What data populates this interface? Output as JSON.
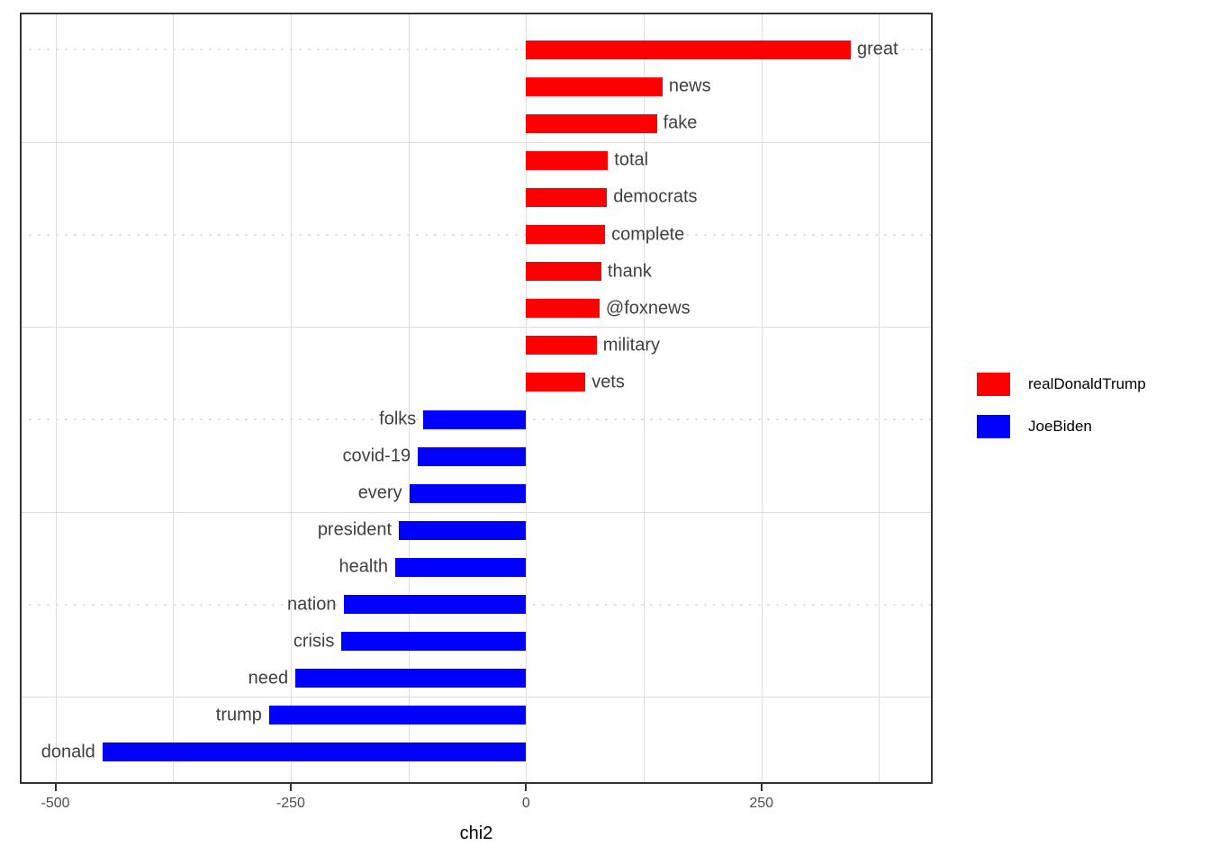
{
  "chart_data": {
    "type": "bar",
    "orientation": "horizontal",
    "title": "",
    "xlabel": "chi2",
    "ylabel": "",
    "x_ticks": [
      {
        "value": -500,
        "label": "-500"
      },
      {
        "value": -250,
        "label": "-250"
      },
      {
        "value": 0,
        "label": "0"
      },
      {
        "value": 250,
        "label": "250"
      }
    ],
    "xlim": [
      -538,
      432
    ],
    "grid": {
      "vertical_line_values": [
        -500,
        -375,
        -250,
        -125,
        0,
        125,
        250,
        375
      ],
      "horizontal_solid_rows": [
        2.5,
        7.5,
        12.5,
        17.5
      ],
      "horizontal_dotted_rows": [
        0,
        5,
        10,
        15
      ]
    },
    "legend_position": "right",
    "series": [
      {
        "name": "realDonaldTrump",
        "color": "#ff0000"
      },
      {
        "name": "JoeBiden",
        "color": "#0000ff"
      }
    ],
    "points": [
      {
        "label": "great",
        "value": 345,
        "series": "realDonaldTrump"
      },
      {
        "label": "news",
        "value": 145,
        "series": "realDonaldTrump"
      },
      {
        "label": "fake",
        "value": 139,
        "series": "realDonaldTrump"
      },
      {
        "label": "total",
        "value": 87,
        "series": "realDonaldTrump"
      },
      {
        "label": "democrats",
        "value": 86,
        "series": "realDonaldTrump"
      },
      {
        "label": "complete",
        "value": 84,
        "series": "realDonaldTrump"
      },
      {
        "label": "thank",
        "value": 80,
        "series": "realDonaldTrump"
      },
      {
        "label": "@foxnews",
        "value": 78,
        "series": "realDonaldTrump"
      },
      {
        "label": "military",
        "value": 75,
        "series": "realDonaldTrump"
      },
      {
        "label": "vets",
        "value": 63,
        "series": "realDonaldTrump"
      },
      {
        "label": "folks",
        "value": -109,
        "series": "JoeBiden"
      },
      {
        "label": "covid-19",
        "value": -115,
        "series": "JoeBiden"
      },
      {
        "label": "every",
        "value": -124,
        "series": "JoeBiden"
      },
      {
        "label": "president",
        "value": -135,
        "series": "JoeBiden"
      },
      {
        "label": "health",
        "value": -139,
        "series": "JoeBiden"
      },
      {
        "label": "nation",
        "value": -194,
        "series": "JoeBiden"
      },
      {
        "label": "crisis",
        "value": -196,
        "series": "JoeBiden"
      },
      {
        "label": "need",
        "value": -245,
        "series": "JoeBiden"
      },
      {
        "label": "trump",
        "value": -273,
        "series": "JoeBiden"
      },
      {
        "label": "donald",
        "value": -450,
        "series": "JoeBiden"
      }
    ]
  }
}
